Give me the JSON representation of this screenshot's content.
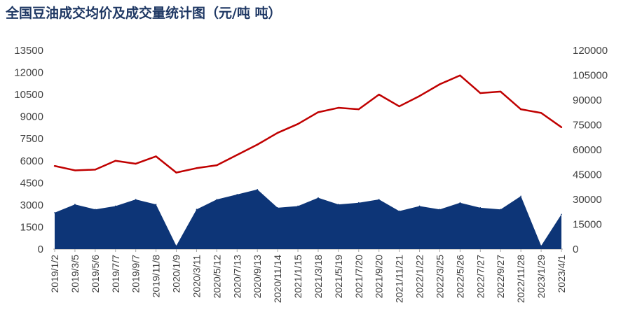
{
  "chart_data": {
    "type": "area",
    "title": "全国豆油成交均价及成交量统计图（元/吨 吨）",
    "x_tick_labels": [
      "2019/1/2",
      "2019/3/5",
      "2019/5/6",
      "2019/7/7",
      "2019/9/7",
      "2019/11/8",
      "2020/1/9",
      "2020/3/11",
      "2020/5/12",
      "2020/7/13",
      "2020/9/13",
      "2020/11/14",
      "2021/1/15",
      "2021/3/18",
      "2021/5/19",
      "2021/7/20",
      "2021/9/20",
      "2021/11/21",
      "2022/1/22",
      "2022/3/25",
      "2022/5/26",
      "2022/7/27",
      "2022/9/27",
      "2022/11/28",
      "2023/1/29",
      "2023/4/1"
    ],
    "y_left": {
      "ticks": [
        0,
        1500,
        3000,
        4500,
        6000,
        7500,
        9000,
        10500,
        12000,
        13500
      ],
      "range": [
        0,
        13500
      ]
    },
    "y_right": {
      "ticks": [
        0,
        15000,
        30000,
        45000,
        60000,
        75000,
        90000,
        105000,
        120000
      ],
      "range": [
        0,
        120000
      ]
    },
    "series": [
      {
        "kind": "area",
        "axis": "right",
        "color": "#0d3577",
        "x": [
          "2019/1/2",
          "2019/3/5",
          "2019/5/6",
          "2019/7/7",
          "2019/9/7",
          "2019/11/8",
          "2020/1/9",
          "2020/3/11",
          "2020/5/12",
          "2020/7/13",
          "2020/9/13",
          "2020/11/14",
          "2021/1/15",
          "2021/3/18",
          "2021/5/19",
          "2021/7/20",
          "2021/9/20",
          "2021/11/21",
          "2022/1/22",
          "2022/3/25",
          "2022/5/26",
          "2022/7/27",
          "2022/9/27",
          "2022/11/28",
          "2023/1/29",
          "2023/4/1"
        ],
        "values": [
          22000,
          27000,
          24000,
          26000,
          30000,
          27000,
          2000,
          24000,
          30000,
          33000,
          36000,
          25000,
          26000,
          31000,
          27000,
          28000,
          30000,
          23000,
          26000,
          24000,
          28000,
          25000,
          24000,
          32000,
          2000,
          21000
        ]
      },
      {
        "kind": "line",
        "axis": "left",
        "color": "#c00000",
        "x": [
          "2019/1/2",
          "2019/3/5",
          "2019/5/6",
          "2019/7/7",
          "2019/9/7",
          "2019/11/8",
          "2020/1/9",
          "2020/3/11",
          "2020/5/12",
          "2020/7/13",
          "2020/9/13",
          "2020/11/14",
          "2021/1/15",
          "2021/3/18",
          "2021/5/19",
          "2021/7/20",
          "2021/9/20",
          "2021/11/21",
          "2022/1/22",
          "2022/3/25",
          "2022/5/26",
          "2022/7/27",
          "2022/9/27",
          "2022/11/28",
          "2023/1/29",
          "2023/4/1"
        ],
        "values": [
          5650,
          5350,
          5400,
          6000,
          5800,
          6300,
          5200,
          5500,
          5700,
          6400,
          7100,
          7900,
          8500,
          9300,
          9600,
          9500,
          10500,
          9700,
          10400,
          11200,
          11800,
          10600,
          10700,
          9500,
          9250,
          8280
        ]
      }
    ]
  }
}
